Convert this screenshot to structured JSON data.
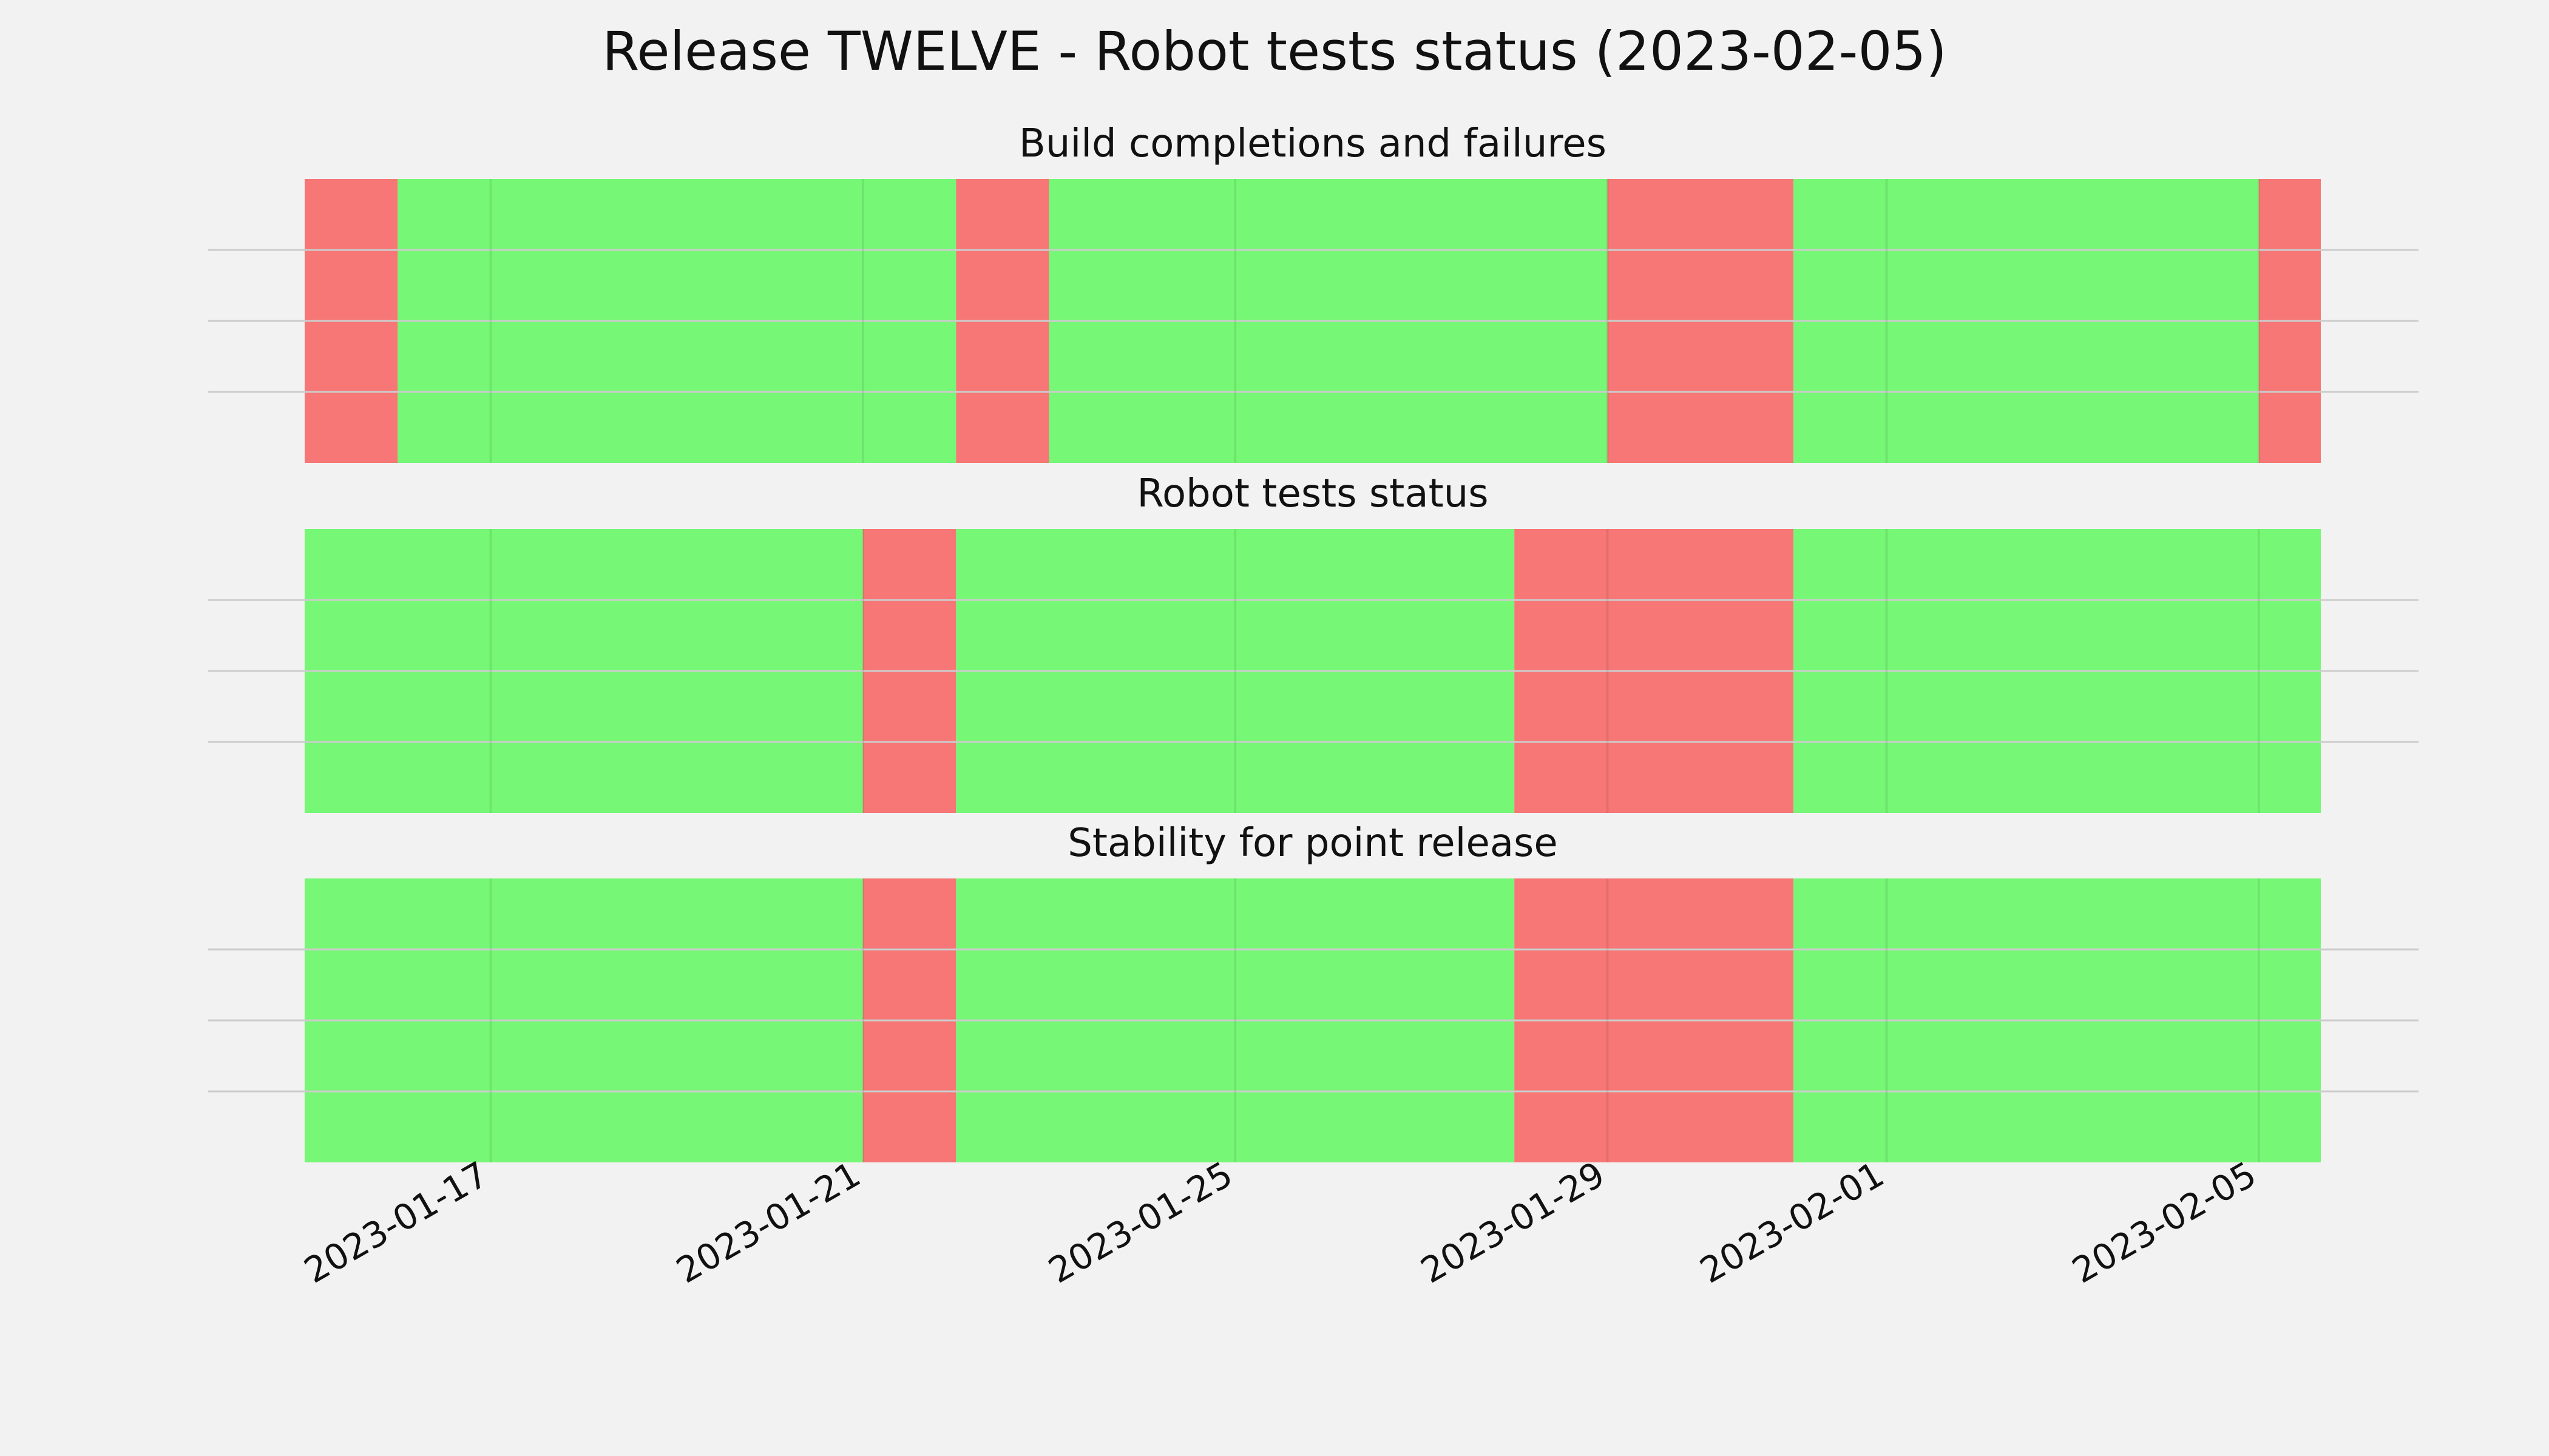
{
  "chart_data": {
    "type": "timeline",
    "title": "Release TWELVE - Robot tests status (2023-02-05)",
    "colors": {
      "pass": "#76f776",
      "fail": "#f77676",
      "background": "#f2f2f2",
      "grid": "#cccccc"
    },
    "x_axis": {
      "range": [
        "2023-01-15",
        "2023-02-05T16:00"
      ],
      "tick_labels": [
        "2023-01-17",
        "2023-01-21",
        "2023-01-25",
        "2023-01-29",
        "2023-02-01",
        "2023-02-05"
      ]
    },
    "grid": true,
    "panels": [
      {
        "title": "Build completions and failures",
        "segments": [
          {
            "start": "2023-01-15",
            "end": "2023-01-16",
            "status": "fail"
          },
          {
            "start": "2023-01-16",
            "end": "2023-01-22",
            "status": "pass"
          },
          {
            "start": "2023-01-22",
            "end": "2023-01-23",
            "status": "fail"
          },
          {
            "start": "2023-01-23",
            "end": "2023-01-29",
            "status": "pass"
          },
          {
            "start": "2023-01-29",
            "end": "2023-01-31",
            "status": "fail"
          },
          {
            "start": "2023-01-31",
            "end": "2023-02-05",
            "status": "pass"
          },
          {
            "start": "2023-02-05",
            "end": "2023-02-05T16:00",
            "status": "fail"
          }
        ]
      },
      {
        "title": "Robot tests status",
        "segments": [
          {
            "start": "2023-01-15",
            "end": "2023-01-21",
            "status": "pass"
          },
          {
            "start": "2023-01-21",
            "end": "2023-01-22",
            "status": "fail"
          },
          {
            "start": "2023-01-22",
            "end": "2023-01-28",
            "status": "pass"
          },
          {
            "start": "2023-01-28",
            "end": "2023-01-31",
            "status": "fail"
          },
          {
            "start": "2023-01-31",
            "end": "2023-02-05T16:00",
            "status": "pass"
          }
        ]
      },
      {
        "title": "Stability for point release",
        "segments": [
          {
            "start": "2023-01-15",
            "end": "2023-01-21",
            "status": "pass"
          },
          {
            "start": "2023-01-21",
            "end": "2023-01-22",
            "status": "fail"
          },
          {
            "start": "2023-01-22",
            "end": "2023-01-28",
            "status": "pass"
          },
          {
            "start": "2023-01-28",
            "end": "2023-01-31",
            "status": "fail"
          },
          {
            "start": "2023-01-31",
            "end": "2023-02-05T16:00",
            "status": "pass"
          }
        ]
      }
    ]
  }
}
